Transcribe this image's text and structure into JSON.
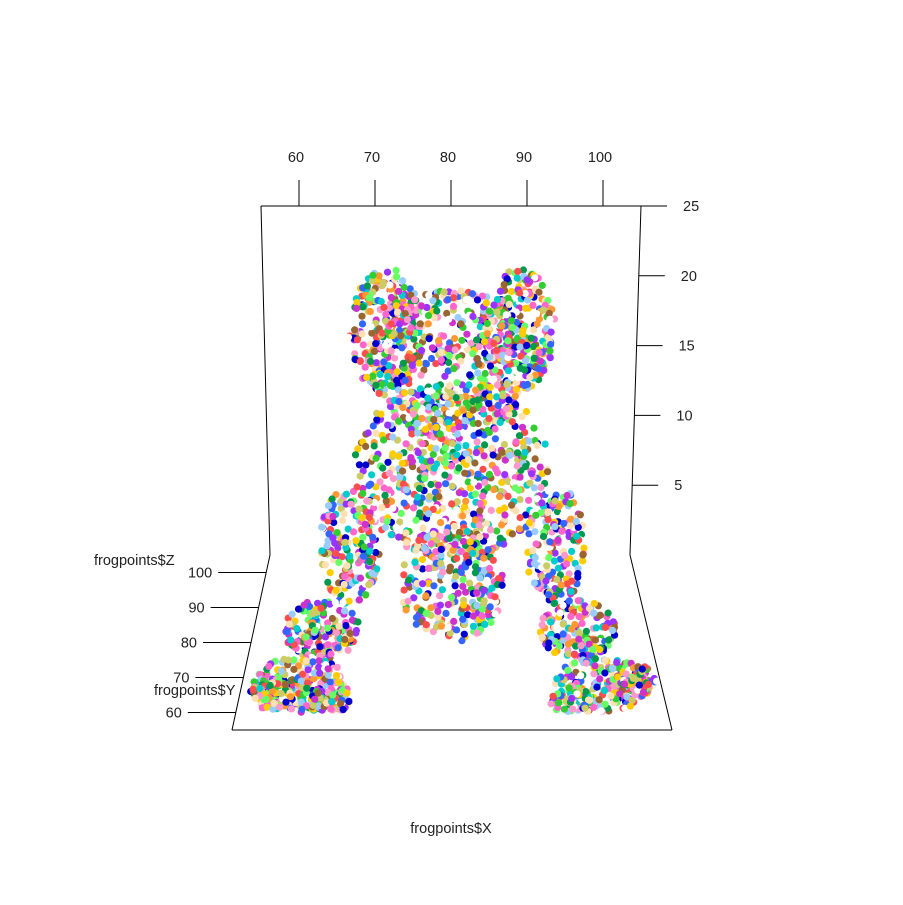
{
  "chart_data": {
    "type": "scatter",
    "projection": "3d",
    "title": "",
    "xlabel": "frogpoints$X",
    "ylabel": "frogpoints$Y",
    "zlabel": "frogpoints$Z",
    "x_ticks": [
      60,
      70,
      80,
      90,
      100
    ],
    "y_ticks": [
      60,
      70,
      80,
      90,
      100
    ],
    "z_ticks": [
      5,
      10,
      15,
      20,
      25
    ],
    "xlim": [
      55,
      105
    ],
    "ylim": [
      55,
      105
    ],
    "zlim": [
      0,
      25
    ],
    "grid": false,
    "legend": "none",
    "point_colors": [
      "#ff4d4d",
      "#33cc33",
      "#3366ff",
      "#ffcc00",
      "#ff66cc",
      "#00cccc",
      "#9933ff",
      "#ff9933",
      "#66ff66",
      "#996633",
      "#ff99cc",
      "#0000cc",
      "#cc33cc",
      "#99ccff",
      "#ffe0b3",
      "#00994d",
      "#cccc66",
      "#ffffff"
    ],
    "regions": [
      {
        "part": "ears",
        "x": [
          68,
          100
        ],
        "y": [
          85,
          100
        ],
        "z": [
          17,
          22
        ]
      },
      {
        "part": "head",
        "x": [
          70,
          96
        ],
        "y": [
          78,
          100
        ],
        "z": [
          8,
          18
        ]
      },
      {
        "part": "body",
        "x": [
          68,
          98
        ],
        "y": [
          66,
          96
        ],
        "z": [
          1,
          12
        ]
      },
      {
        "part": "left-front-leg",
        "x": [
          64,
          76
        ],
        "y": [
          64,
          90
        ],
        "z": [
          0,
          6
        ]
      },
      {
        "part": "right-front-leg",
        "x": [
          90,
          102
        ],
        "y": [
          64,
          90
        ],
        "z": [
          0,
          6
        ]
      },
      {
        "part": "left-hind-foot",
        "x": [
          58,
          70
        ],
        "y": [
          56,
          78
        ],
        "z": [
          0,
          2
        ]
      },
      {
        "part": "right-hind-foot",
        "x": [
          95,
          106
        ],
        "y": [
          56,
          78
        ],
        "z": [
          0,
          2
        ]
      }
    ]
  }
}
